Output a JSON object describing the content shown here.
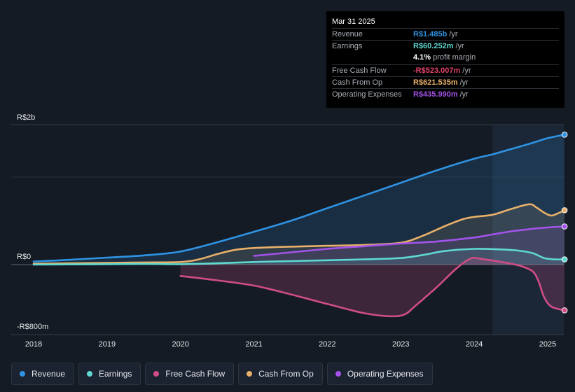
{
  "colors": {
    "revenue": "#2f93e3",
    "earnings": "#5fd8d2",
    "fcf": "#cf4d86",
    "cfo": "#e8b06a",
    "opex": "#a353e9",
    "background": "#151b24",
    "grid": "#3a404a"
  },
  "tooltip": {
    "date": "Mar 31 2025",
    "rows": [
      {
        "label": "Revenue",
        "value": "R$1.485b",
        "unit": "/yr",
        "color": "#2f93e3"
      },
      {
        "label": "Earnings",
        "value": "R$60.252m",
        "unit": "/yr",
        "color": "#5fd8d2"
      },
      {
        "label": "",
        "value": "4.1%",
        "unit": "profit margin",
        "color": "#ffffff"
      },
      {
        "label": "Free Cash Flow",
        "value": "-R$523.007m",
        "unit": "/yr",
        "color": "#e0416a"
      },
      {
        "label": "Cash From Op",
        "value": "R$621.535m",
        "unit": "/yr",
        "color": "#e8b06a"
      },
      {
        "label": "Operating Expenses",
        "value": "R$435.990m",
        "unit": "/yr",
        "color": "#a353e9"
      }
    ]
  },
  "legend": [
    {
      "label": "Revenue",
      "color": "#2f93e3"
    },
    {
      "label": "Earnings",
      "color": "#5fd8d2"
    },
    {
      "label": "Free Cash Flow",
      "color": "#cf4d86"
    },
    {
      "label": "Cash From Op",
      "color": "#e8b06a"
    },
    {
      "label": "Operating Expenses",
      "color": "#a353e9"
    }
  ],
  "chart_data": {
    "type": "line",
    "title": "",
    "ylabel_top": "R$2b",
    "ylabel_zero": "R$0",
    "ylabel_bottom": "-R$800m",
    "ylim": [
      -800,
      1600
    ],
    "xlim": [
      2017.8,
      2025.23
    ],
    "x_ticks": [
      "2018",
      "2019",
      "2020",
      "2021",
      "2022",
      "2023",
      "2024",
      "2025"
    ],
    "x_tick_values": [
      2018,
      2019,
      2020,
      2021,
      2022,
      2023,
      2024,
      2025
    ],
    "highlight_start": 2024.25,
    "series": [
      {
        "name": "Revenue",
        "key": "revenue",
        "fill": true,
        "end_marker": true,
        "points": [
          [
            2018,
            35
          ],
          [
            2018.5,
            55
          ],
          [
            2019,
            80
          ],
          [
            2019.5,
            105
          ],
          [
            2020,
            150
          ],
          [
            2020.5,
            255
          ],
          [
            2021,
            375
          ],
          [
            2021.5,
            500
          ],
          [
            2022,
            645
          ],
          [
            2022.5,
            790
          ],
          [
            2023,
            935
          ],
          [
            2023.5,
            1080
          ],
          [
            2024,
            1210
          ],
          [
            2024.25,
            1260
          ],
          [
            2024.5,
            1320
          ],
          [
            2024.75,
            1380
          ],
          [
            2025,
            1445
          ],
          [
            2025.23,
            1485
          ]
        ]
      },
      {
        "name": "Cash From Op",
        "key": "cfo",
        "fill": true,
        "end_marker": true,
        "points": [
          [
            2018,
            10
          ],
          [
            2019,
            20
          ],
          [
            2019.5,
            25
          ],
          [
            2020,
            30
          ],
          [
            2020.25,
            60
          ],
          [
            2020.5,
            120
          ],
          [
            2020.75,
            170
          ],
          [
            2021,
            190
          ],
          [
            2021.5,
            205
          ],
          [
            2022,
            215
          ],
          [
            2022.5,
            225
          ],
          [
            2023,
            250
          ],
          [
            2023.3,
            330
          ],
          [
            2023.6,
            440
          ],
          [
            2023.85,
            520
          ],
          [
            2024,
            545
          ],
          [
            2024.25,
            570
          ],
          [
            2024.5,
            635
          ],
          [
            2024.75,
            690
          ],
          [
            2024.85,
            650
          ],
          [
            2024.95,
            595
          ],
          [
            2025.05,
            560
          ],
          [
            2025.15,
            590
          ],
          [
            2025.23,
            621
          ]
        ]
      },
      {
        "name": "Operating Expenses",
        "key": "opex",
        "fill": true,
        "end_marker": true,
        "points": [
          [
            2021,
            100
          ],
          [
            2021.5,
            140
          ],
          [
            2022,
            180
          ],
          [
            2022.5,
            210
          ],
          [
            2023,
            240
          ],
          [
            2023.5,
            265
          ],
          [
            2024,
            310
          ],
          [
            2024.25,
            345
          ],
          [
            2024.5,
            380
          ],
          [
            2024.75,
            405
          ],
          [
            2025,
            425
          ],
          [
            2025.23,
            436
          ]
        ]
      },
      {
        "name": "Earnings",
        "key": "earnings",
        "fill": true,
        "end_marker": true,
        "points": [
          [
            2018,
            0
          ],
          [
            2019,
            5
          ],
          [
            2019.5,
            8
          ],
          [
            2020,
            5
          ],
          [
            2020.5,
            15
          ],
          [
            2021,
            30
          ],
          [
            2021.5,
            40
          ],
          [
            2022,
            50
          ],
          [
            2022.5,
            60
          ],
          [
            2023,
            75
          ],
          [
            2023.3,
            110
          ],
          [
            2023.6,
            155
          ],
          [
            2024,
            180
          ],
          [
            2024.3,
            175
          ],
          [
            2024.6,
            160
          ],
          [
            2024.8,
            130
          ],
          [
            2024.95,
            75
          ],
          [
            2025.1,
            60
          ],
          [
            2025.23,
            60
          ]
        ]
      },
      {
        "name": "Free Cash Flow",
        "key": "fcf",
        "fill": true,
        "end_marker": true,
        "points": [
          [
            2020,
            -130
          ],
          [
            2020.5,
            -180
          ],
          [
            2021,
            -240
          ],
          [
            2021.5,
            -340
          ],
          [
            2022,
            -450
          ],
          [
            2022.5,
            -555
          ],
          [
            2022.85,
            -590
          ],
          [
            2023.05,
            -570
          ],
          [
            2023.2,
            -470
          ],
          [
            2023.5,
            -250
          ],
          [
            2023.75,
            -50
          ],
          [
            2023.95,
            70
          ],
          [
            2024.1,
            65
          ],
          [
            2024.3,
            40
          ],
          [
            2024.5,
            10
          ],
          [
            2024.65,
            -20
          ],
          [
            2024.8,
            -80
          ],
          [
            2024.88,
            -200
          ],
          [
            2024.95,
            -370
          ],
          [
            2025.05,
            -480
          ],
          [
            2025.23,
            -523
          ]
        ]
      }
    ]
  }
}
